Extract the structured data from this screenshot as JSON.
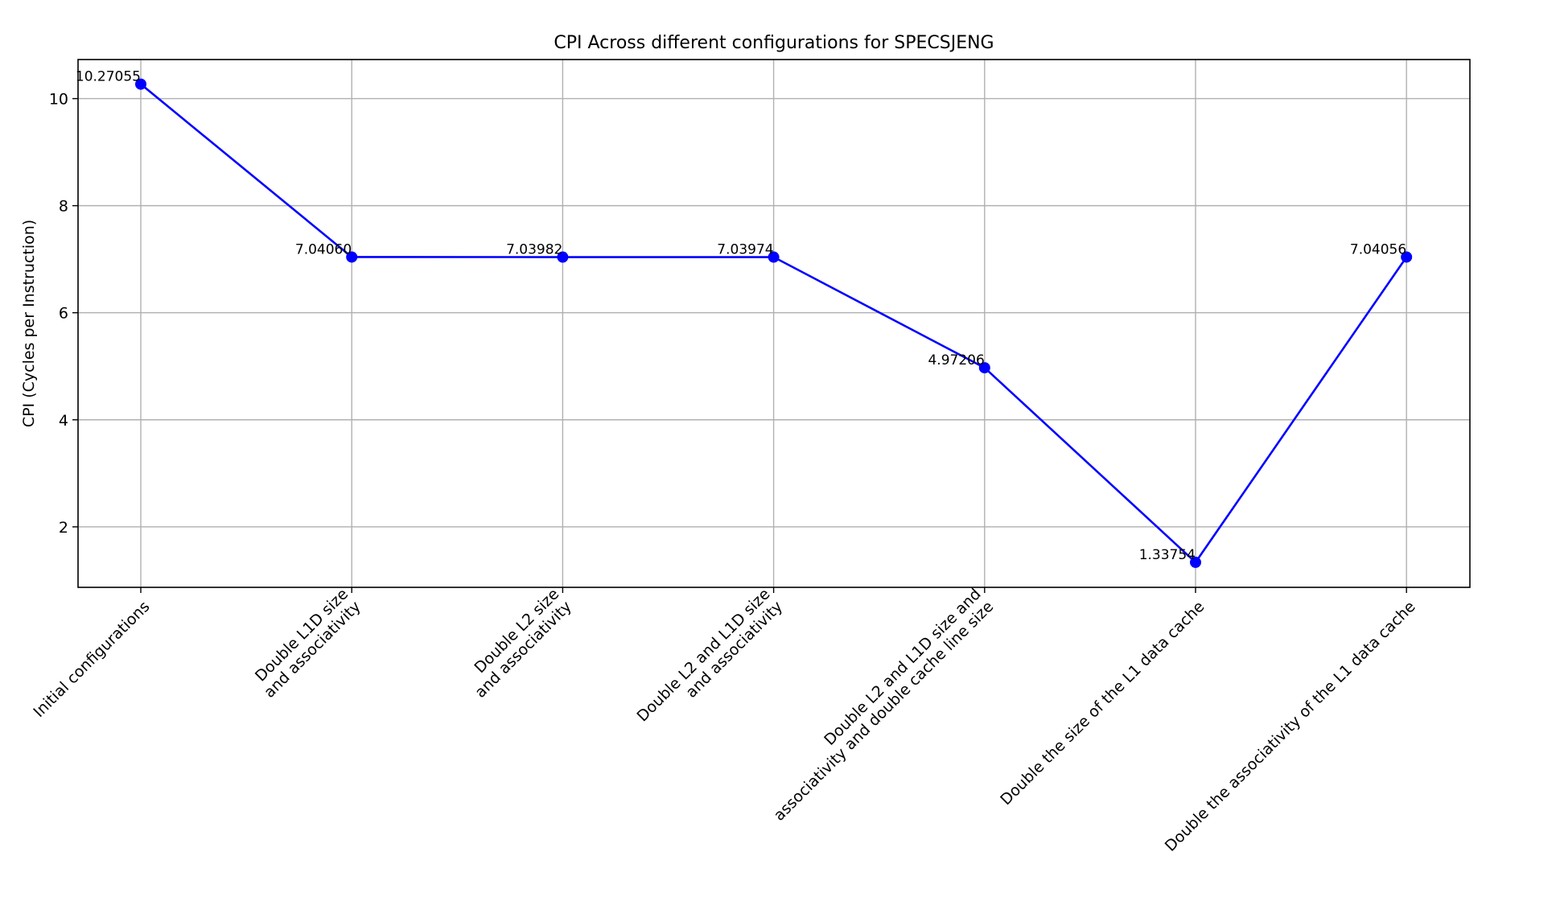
{
  "chart_data": {
    "type": "line",
    "title": "CPI Across different configurations for SPECSJENG",
    "xlabel": "",
    "ylabel": "CPI (Cycles per Instruction)",
    "categories": [
      [
        "Initial configurations"
      ],
      [
        "Double L1D size",
        "and associativity"
      ],
      [
        "Double L2 size",
        "and associativity"
      ],
      [
        "Double L2 and L1D size",
        "and associativity"
      ],
      [
        "Double L2 and L1D size and",
        "associativity and double cache line size"
      ],
      [
        "Double the size of the L1 data cache"
      ],
      [
        "Double the associativity of the L1 data cache"
      ]
    ],
    "values": [
      10.27055,
      7.0406,
      7.03982,
      7.03974,
      4.97206,
      1.33754,
      7.04056
    ],
    "data_labels": [
      "10.27055",
      "7.04060",
      "7.03982",
      "7.03974",
      "4.97206",
      "1.33754",
      "7.04056"
    ],
    "yticks": [
      2,
      4,
      6,
      8,
      10
    ],
    "ytick_labels": [
      "2",
      "4",
      "6",
      "8",
      "10"
    ],
    "ylim": [
      0.87,
      10.73
    ],
    "grid": true,
    "marker": "circle",
    "colors": {
      "line": "#0000ff",
      "marker": "#0000ff",
      "grid": "#b0b0b0"
    }
  }
}
